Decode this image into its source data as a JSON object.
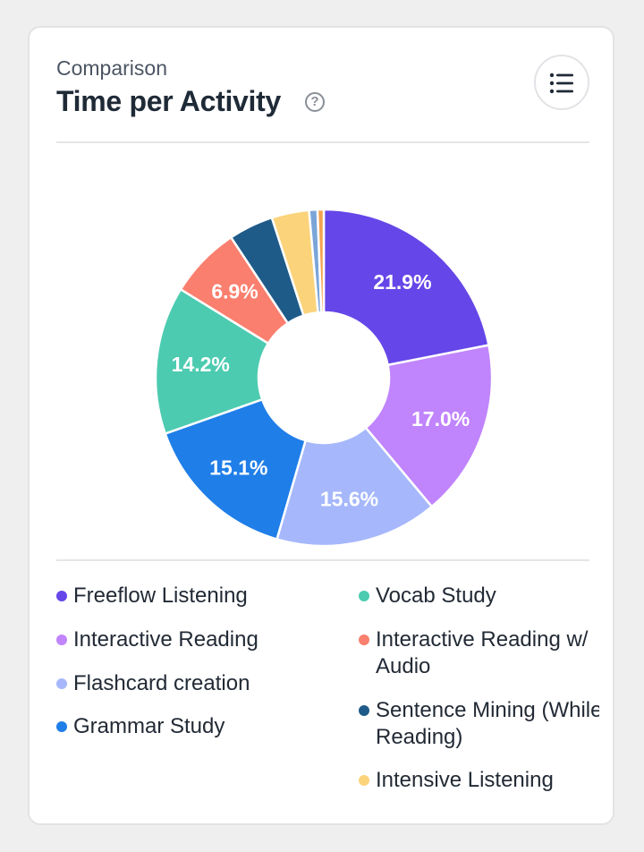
{
  "header": {
    "eyebrow": "Comparison",
    "title": "Time per Activity",
    "help_icon": "question-circle-icon",
    "menu_icon": "list-icon"
  },
  "chart_data": {
    "type": "pie",
    "variant": "donut",
    "legend": "bottom",
    "slices": [
      {
        "label": "Freeflow Listening",
        "value": 21.9,
        "color": "#6546e8",
        "data_label": "21.9%"
      },
      {
        "label": "Interactive Reading",
        "value": 17.0,
        "color": "#c084fc",
        "data_label": "17.0%"
      },
      {
        "label": "Flashcard creation",
        "value": 15.6,
        "color": "#a6b8fb",
        "data_label": "15.6%"
      },
      {
        "label": "Grammar Study",
        "value": 15.1,
        "color": "#1f7ee8",
        "data_label": "15.1%"
      },
      {
        "label": "Vocab Study",
        "value": 14.2,
        "color": "#4ccbb0",
        "data_label": "14.2%"
      },
      {
        "label": "Interactive Reading w/ Audio",
        "value": 6.9,
        "color": "#fa7f6e",
        "data_label": "6.9%"
      },
      {
        "label": "Sentence Mining (While Reading)",
        "value": 4.3,
        "color": "#1e5b89",
        "data_label": ""
      },
      {
        "label": "Intensive Listening",
        "value": 3.6,
        "color": "#fbd37b",
        "data_label": ""
      },
      {
        "label": "",
        "value": 0.8,
        "color": "#7aa5d8",
        "data_label": ""
      },
      {
        "label": "",
        "value": 0.6,
        "color": "#f3a24f",
        "data_label": ""
      }
    ]
  },
  "legend_items": [
    {
      "lines": [
        "Freeflow Listening"
      ],
      "color": "#6546e8"
    },
    {
      "lines": [
        "Interactive Reading"
      ],
      "color": "#c084fc"
    },
    {
      "lines": [
        "Flashcard creation"
      ],
      "color": "#a6b8fb"
    },
    {
      "lines": [
        "Grammar Study"
      ],
      "color": "#1f7ee8"
    },
    {
      "lines": [
        "Vocab Study"
      ],
      "color": "#4ccbb0"
    },
    {
      "lines": [
        "Interactive Reading w/",
        "Audio"
      ],
      "color": "#fa7f6e"
    },
    {
      "lines": [
        "Sentence Mining (While",
        "Reading)"
      ],
      "color": "#1e5b89"
    },
    {
      "lines": [
        "Intensive Listening"
      ],
      "color": "#fbd37b"
    }
  ]
}
